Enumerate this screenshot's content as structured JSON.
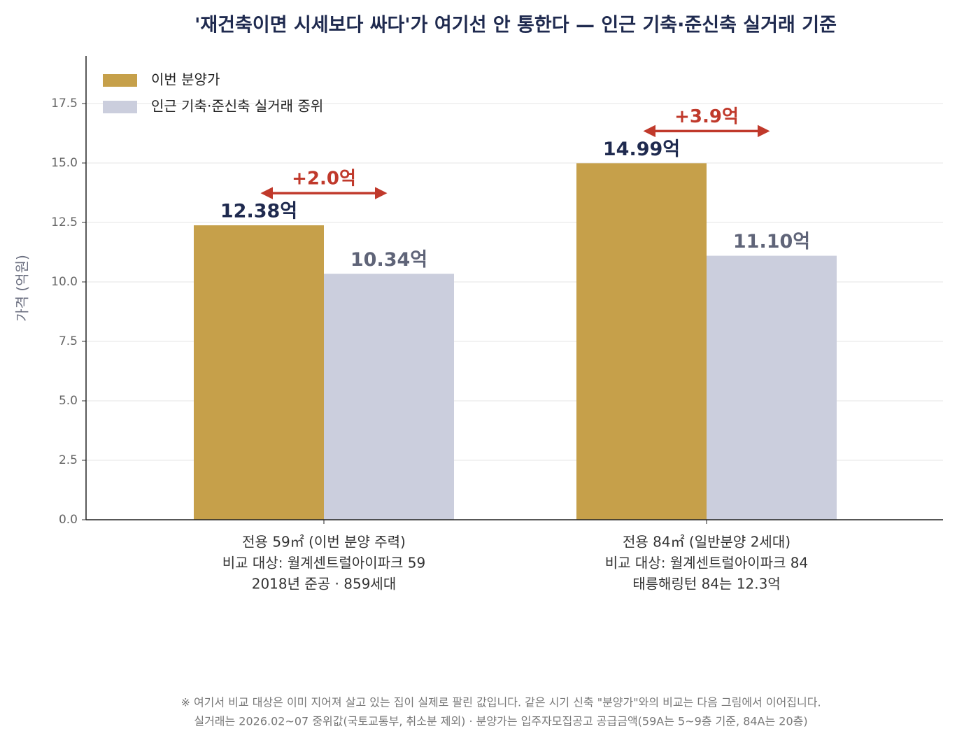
{
  "chart_data": {
    "type": "bar",
    "title": "'재건축이면 시세보다 싸다'가 여기선 안 통한다 — 인근 기축·준신축 실거래 기준",
    "y_label": "가격 (억원)",
    "categories": [
      [
        "전용 59㎡ (이번 분양 주력)",
        "비교 대상: 월계센트럴아이파크 59",
        "2018년 준공 · 859세대"
      ],
      [
        "전용 84㎡ (일반분양 2세대)",
        "비교 대상: 월계센트럴아이파크 84",
        "태릉해링턴 84는 12.3억"
      ]
    ],
    "series": [
      {
        "name": "이번 분양가",
        "color": "#c6a04a",
        "label_color": "#1f2a4f",
        "values": [
          12.38,
          14.99
        ],
        "value_labels": [
          "12.38억",
          "14.99억"
        ]
      },
      {
        "name": "인근 기축·준신축 실거래 중위",
        "color": "#cbcedd",
        "label_color": "#5f6478",
        "values": [
          10.34,
          11.1
        ],
        "value_labels": [
          "10.34억",
          "11.10억"
        ]
      }
    ],
    "annotations": [
      "+2.0억",
      "+3.9억"
    ],
    "annotation_color": "#c0392b",
    "ylim": [
      0,
      19.5
    ],
    "yticks": [
      {
        "value": 0,
        "label": "0.0"
      },
      {
        "value": 2.5,
        "label": "2.5"
      },
      {
        "value": 5,
        "label": "5.0"
      },
      {
        "value": 7.5,
        "label": "7.5"
      },
      {
        "value": 10,
        "label": "10.0"
      },
      {
        "value": 12.5,
        "label": "12.5"
      },
      {
        "value": 15,
        "label": "15.0"
      },
      {
        "value": 17.5,
        "label": "17.5"
      }
    ],
    "grid": true,
    "legend": "upper left",
    "notes": [
      "※ 여기서 비교 대상은 이미 지어져 살고 있는 집이 실제로 팔린 값입니다. 같은 시기 신축 \"분양가\"와의 비교는 다음 그림에서 이어집니다.",
      "실거래는 2026.02~07 중위값(국토교통부, 취소분 제외) · 분양가는 입주자모집공고 공급금액(59A는 5~9층 기준, 84A는 20층)"
    ]
  }
}
